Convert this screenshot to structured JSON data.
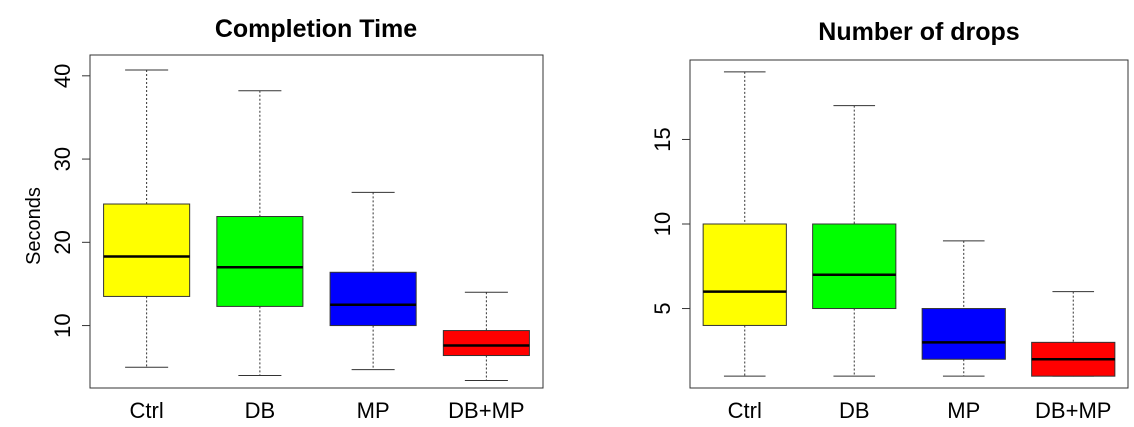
{
  "chart_data": [
    {
      "type": "box",
      "title": "Completion Time",
      "xlabel": "",
      "ylabel": "Seconds",
      "categories": [
        "Ctrl",
        "DB",
        "MP",
        "DB+MP"
      ],
      "colors": [
        "#ffff00",
        "#00ff00",
        "#0000ff",
        "#ff0000"
      ],
      "ylim": [
        2.5,
        42.5
      ],
      "yticks": [
        10,
        20,
        30,
        40
      ],
      "ytick_labels": [
        "10",
        "20",
        "30",
        "40"
      ],
      "boxes": [
        {
          "min": 5.0,
          "q1": 13.5,
          "median": 18.3,
          "q3": 24.6,
          "max": 40.7
        },
        {
          "min": 4.0,
          "q1": 12.3,
          "median": 17.0,
          "q3": 23.1,
          "max": 38.2
        },
        {
          "min": 4.7,
          "q1": 10.0,
          "median": 12.5,
          "q3": 16.4,
          "max": 26.0
        },
        {
          "min": 3.4,
          "q1": 6.4,
          "median": 7.6,
          "q3": 9.4,
          "max": 14.0
        }
      ]
    },
    {
      "type": "box",
      "title": "Number of drops",
      "xlabel": "",
      "ylabel": "",
      "categories": [
        "Ctrl",
        "DB",
        "MP",
        "DB+MP"
      ],
      "colors": [
        "#ffff00",
        "#00ff00",
        "#0000ff",
        "#ff0000"
      ],
      "ylim": [
        0.3,
        19.7
      ],
      "yticks": [
        5,
        10,
        15
      ],
      "ytick_labels": [
        "5",
        "10",
        "15"
      ],
      "boxes": [
        {
          "min": 1,
          "q1": 4,
          "median": 6,
          "q3": 10,
          "max": 19
        },
        {
          "min": 1,
          "q1": 5,
          "median": 7,
          "q3": 10,
          "max": 17
        },
        {
          "min": 1,
          "q1": 2,
          "median": 3,
          "q3": 5,
          "max": 9
        },
        {
          "min": 1,
          "q1": 1,
          "median": 2,
          "q3": 3,
          "max": 6
        }
      ]
    }
  ]
}
